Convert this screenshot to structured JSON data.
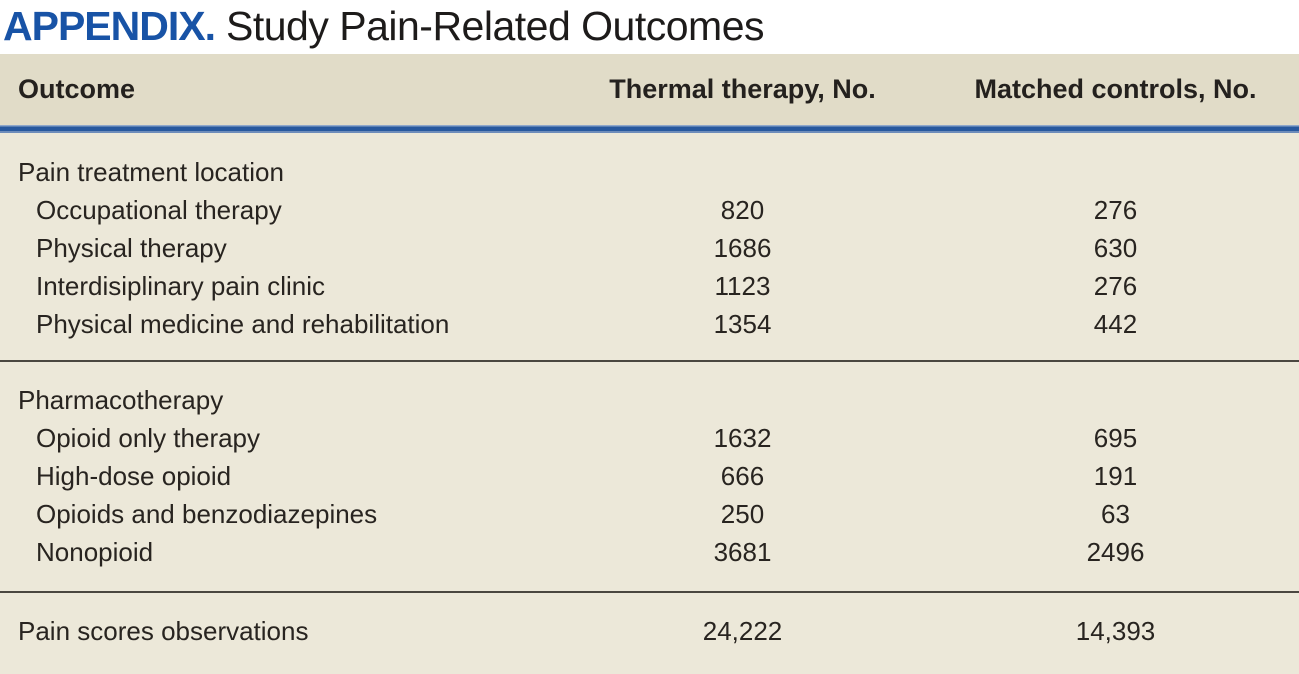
{
  "title": {
    "label": "APPENDIX.",
    "text": "Study Pain-Related Outcomes"
  },
  "colors": {
    "title_blue": "#1853a6",
    "rule_blue": "#27589e",
    "header_bg": "#e1dcc8",
    "body_bg": "#ece8d9",
    "text": "#282420",
    "divider": "#4a4740"
  },
  "table": {
    "columns": [
      {
        "label": "Outcome"
      },
      {
        "label": "Thermal therapy, No."
      },
      {
        "label": "Matched controls, No."
      }
    ],
    "sections": [
      {
        "rows": [
          {
            "label": "Pain treatment location",
            "thermal": "",
            "matched": ""
          },
          {
            "label": "Occupational therapy",
            "thermal": "820",
            "matched": "276"
          },
          {
            "label": "Physical therapy",
            "thermal": "1686",
            "matched": "630"
          },
          {
            "label": "Interdisiplinary pain clinic",
            "thermal": "1123",
            "matched": "276"
          },
          {
            "label": "Physical medicine and rehabilitation",
            "thermal": "1354",
            "matched": "442"
          }
        ]
      },
      {
        "rows": [
          {
            "label": "Pharmacotherapy",
            "thermal": "",
            "matched": ""
          },
          {
            "label": "Opioid only therapy",
            "thermal": "1632",
            "matched": "695"
          },
          {
            "label": "High-dose opioid",
            "thermal": "666",
            "matched": "191"
          },
          {
            "label": "Opioids and benzodiazepines",
            "thermal": "250",
            "matched": "63"
          },
          {
            "label": "Nonopioid",
            "thermal": "3681",
            "matched": "2496"
          }
        ]
      },
      {
        "rows": [
          {
            "label": "Pain scores observations",
            "thermal": "24,222",
            "matched": "14,393"
          }
        ]
      }
    ]
  }
}
